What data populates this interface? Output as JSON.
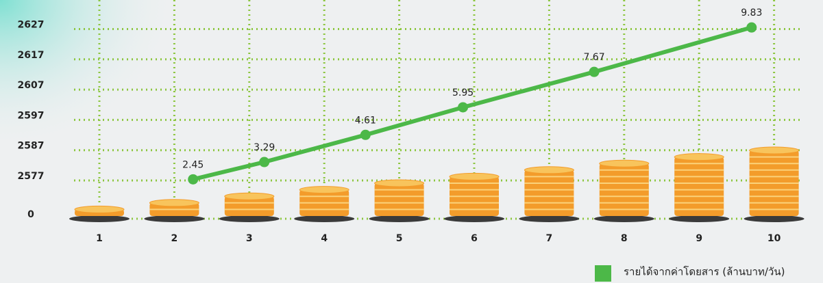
{
  "chart_data": {
    "type": "coin-stack-line",
    "categories": [
      "1",
      "2",
      "3",
      "4",
      "5",
      "6",
      "7",
      "8",
      "9",
      "10"
    ],
    "stacks": [
      1,
      2,
      3,
      4,
      5,
      6,
      7,
      8,
      9,
      10
    ],
    "yticks": [
      0,
      2577,
      2587,
      2597,
      2607,
      2617,
      2627
    ],
    "y2lim": [
      0.6,
      10.5
    ],
    "grid": true,
    "legend": "bottom-right",
    "series": [
      {
        "name": "รายได้จากค่าโดยสาร (ล้านบาท/วัน)",
        "color": "#4cb848",
        "axis": "y2",
        "x": [
          2.25,
          3.2,
          4.55,
          5.85,
          7.6,
          9.7
        ],
        "values": [
          2.45,
          3.29,
          4.61,
          5.95,
          7.67,
          9.83
        ]
      }
    ]
  }
}
